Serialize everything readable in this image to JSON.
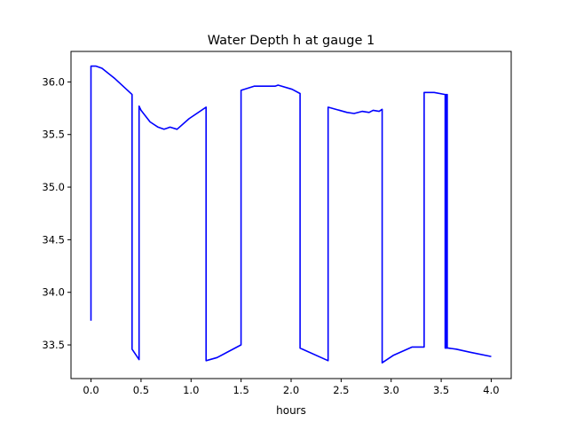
{
  "chart_data": {
    "type": "line",
    "title": "Water Depth h at gauge 1",
    "xlabel": "hours",
    "ylabel": "",
    "xlim": [
      -0.2,
      4.2
    ],
    "ylim": [
      33.18,
      36.29
    ],
    "xticks": [
      0.0,
      0.5,
      1.0,
      1.5,
      2.0,
      2.5,
      3.0,
      3.5,
      4.0
    ],
    "xtick_labels": [
      "0.0",
      "0.5",
      "1.0",
      "1.5",
      "2.0",
      "2.5",
      "3.0",
      "3.5",
      "4.0"
    ],
    "yticks": [
      33.5,
      34.0,
      34.5,
      35.0,
      35.5,
      36.0
    ],
    "ytick_labels": [
      "33.5",
      "34.0",
      "34.5",
      "35.0",
      "35.5",
      "36.0"
    ],
    "grid": false,
    "series": [
      {
        "name": "h",
        "color": "#0000ff",
        "x": [
          0.0,
          0.0,
          0.05,
          0.11,
          0.24,
          0.41,
          0.41,
          0.48,
          0.48,
          0.5,
          0.59,
          0.67,
          0.73,
          0.76,
          0.79,
          0.86,
          0.98,
          1.15,
          1.15,
          1.26,
          1.5,
          1.5,
          1.63,
          1.84,
          1.87,
          2.01,
          2.09,
          2.09,
          2.37,
          2.37,
          2.56,
          2.63,
          2.71,
          2.78,
          2.82,
          2.88,
          2.91,
          2.91,
          3.02,
          3.21,
          3.33,
          3.33,
          3.43,
          3.54,
          3.54,
          3.55,
          3.55,
          3.56,
          3.56,
          3.57,
          3.65,
          3.79,
          4.0
        ],
        "y": [
          33.73,
          36.15,
          36.15,
          36.13,
          36.03,
          35.88,
          33.46,
          33.36,
          35.77,
          35.73,
          35.62,
          35.57,
          35.55,
          35.56,
          35.57,
          35.55,
          35.65,
          35.76,
          33.35,
          33.38,
          33.5,
          35.92,
          35.96,
          35.96,
          35.97,
          35.93,
          35.89,
          33.47,
          33.35,
          35.76,
          35.71,
          35.7,
          35.72,
          35.71,
          35.73,
          35.72,
          35.74,
          33.33,
          33.4,
          33.48,
          33.48,
          35.9,
          35.9,
          35.88,
          33.47,
          35.88,
          33.47,
          35.88,
          33.47,
          33.47,
          33.46,
          33.43,
          33.39
        ]
      }
    ]
  }
}
